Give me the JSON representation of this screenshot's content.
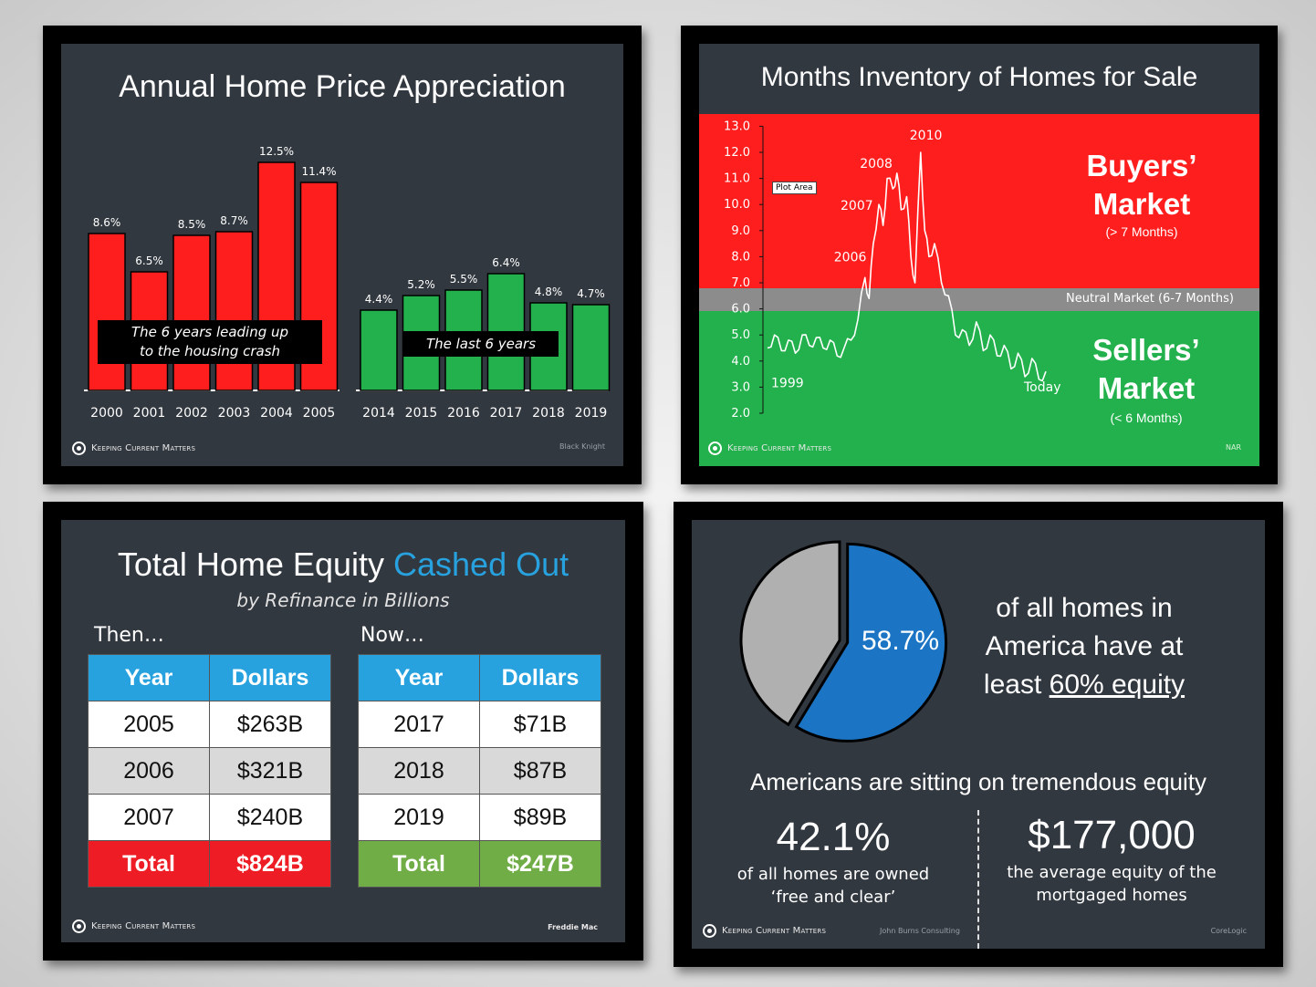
{
  "logo_text": "Keeping Current Matters",
  "colors": {
    "red": "#ff1e1e",
    "green": "#22b14c",
    "blue": "#1b75c4",
    "gray_slice": "#b0b0b0",
    "accent": "#27a2df"
  },
  "chart_data": [
    {
      "type": "bar",
      "title": "Annual Home Price Appreciation",
      "source": "Black Knight",
      "series": [
        {
          "name": "2000-2005",
          "categories": [
            "2000",
            "2001",
            "2002",
            "2003",
            "2004",
            "2005"
          ],
          "values": [
            8.6,
            6.5,
            8.5,
            8.7,
            12.5,
            11.4
          ],
          "labels": [
            "8.6%",
            "6.5%",
            "8.5%",
            "8.7%",
            "12.5%",
            "11.4%"
          ],
          "color": "#ff1e1e"
        },
        {
          "name": "2014-2019",
          "categories": [
            "2014",
            "2015",
            "2016",
            "2017",
            "2018",
            "2019"
          ],
          "values": [
            4.4,
            5.2,
            5.5,
            6.4,
            4.8,
            4.7
          ],
          "labels": [
            "4.4%",
            "5.2%",
            "5.5%",
            "6.4%",
            "4.8%",
            "4.7%"
          ],
          "color": "#22b14c"
        }
      ],
      "annotations": [
        "The 6 years leading up to the housing crash",
        "The last 6 years"
      ],
      "annotation_lines": [
        [
          "The 6 years leading up",
          "to the housing crash"
        ],
        [
          "The last 6 years"
        ]
      ],
      "ylim": [
        0,
        13
      ]
    },
    {
      "type": "line",
      "title": "Months Inventory of Homes for Sale",
      "source": "NAR",
      "ylim": [
        2.0,
        13.0
      ],
      "yticks": [
        "2.0",
        "3.0",
        "4.0",
        "5.0",
        "6.0",
        "7.0",
        "8.0",
        "9.0",
        "10.0",
        "11.0",
        "12.0",
        "13.0"
      ],
      "zones": [
        {
          "name": "Buyers' Market",
          "range": [
            7,
            13
          ],
          "color": "#ff1e1e",
          "label_lines": [
            "Buyers’",
            "Market"
          ],
          "sublabel": "(> 7 Months)"
        },
        {
          "name": "Neutral Market",
          "range": [
            6,
            7
          ],
          "color": "#8c8c8c",
          "label": "Neutral Market (6-7 Months)"
        },
        {
          "name": "Sellers' Market",
          "range": [
            2,
            6
          ],
          "color": "#22b14c",
          "label_lines": [
            "Sellers’",
            "Market"
          ],
          "sublabel": "(< 6 Months)"
        }
      ],
      "annotations": [
        "1999",
        "2006",
        "2007",
        "2008",
        "2010",
        "Today"
      ],
      "plot_area_label": "Plot Area",
      "series": [
        {
          "name": "Months inventory",
          "x": [
            1999,
            1999.5,
            2000,
            2000.5,
            2001,
            2001.5,
            2002,
            2002.5,
            2003,
            2003.5,
            2004,
            2004.5,
            2005,
            2005.5,
            2006,
            2006.3,
            2006.6,
            2007,
            2007.3,
            2007.6,
            2008,
            2008.3,
            2008.6,
            2009,
            2009.3,
            2009.6,
            2010,
            2010.3,
            2010.6,
            2011,
            2011.5,
            2012,
            2012.5,
            2013,
            2013.5,
            2014,
            2014.5,
            2015,
            2015.5,
            2016,
            2016.5,
            2017,
            2017.5,
            2018,
            2018.5,
            2019
          ],
          "y": [
            4.5,
            5.0,
            4.4,
            4.8,
            4.3,
            5.0,
            4.6,
            4.9,
            4.5,
            4.8,
            4.2,
            4.5,
            4.8,
            5.6,
            7.2,
            6.4,
            8.5,
            10.0,
            9.2,
            11.0,
            10.6,
            11.2,
            9.8,
            10.3,
            8.0,
            7.0,
            12.0,
            9.0,
            8.0,
            8.5,
            7.0,
            6.5,
            5.0,
            5.2,
            4.6,
            5.5,
            4.4,
            5.0,
            4.2,
            4.6,
            3.7,
            4.3,
            3.4,
            4.1,
            3.3,
            3.6
          ]
        }
      ]
    },
    {
      "type": "pie",
      "values": [
        58.7,
        41.3
      ],
      "labels": [
        "58.7%",
        ""
      ],
      "colors": [
        "#1b75c4",
        "#b0b0b0"
      ],
      "source": "John Burns Consulting"
    }
  ],
  "equity_slide": {
    "title_plain": "Total Home Equity ",
    "title_accent": "Cashed Out",
    "subtitle": "by Refinance in Billions",
    "then_label": "Then…",
    "now_label": "Now…",
    "headers": [
      "Year",
      "Dollars"
    ],
    "then_rows": [
      [
        "2005",
        "$263B"
      ],
      [
        "2006",
        "$321B"
      ],
      [
        "2007",
        "$240B"
      ]
    ],
    "then_total": [
      "Total",
      "$824B"
    ],
    "now_rows": [
      [
        "2017",
        "$71B"
      ],
      [
        "2018",
        "$87B"
      ],
      [
        "2019",
        "$89B"
      ]
    ],
    "now_total": [
      "Total",
      "$247B"
    ],
    "source": "Freddie Mac"
  },
  "stats_slide": {
    "pie_label": "58.7%",
    "headline_lines": [
      "of all homes in",
      "America have at",
      "least "
    ],
    "headline_emph": "60% equity",
    "subheadline": "Americans are sitting on tremendous equity",
    "stat1_value": "42.1%",
    "stat1_lines": [
      "of all homes are owned",
      "‘free and clear’"
    ],
    "stat2_value": "$177,000",
    "stat2_lines": [
      "the average equity of the",
      "mortgaged homes"
    ],
    "source_left": "John Burns Consulting",
    "source_right": "CoreLogic"
  }
}
